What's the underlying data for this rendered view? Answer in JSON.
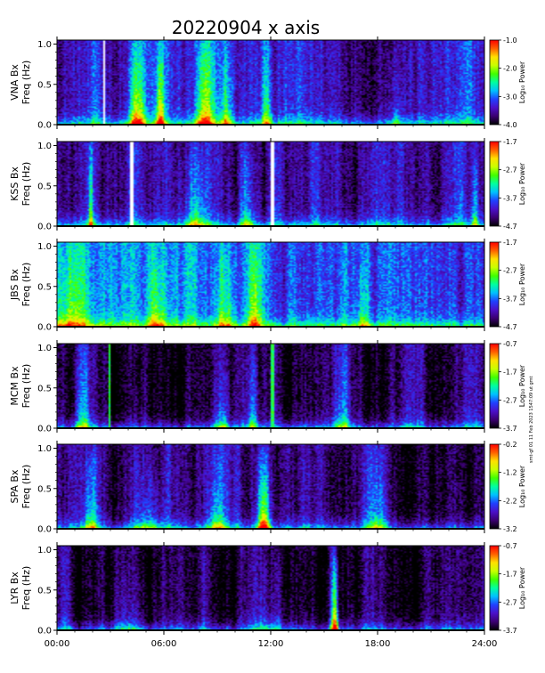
{
  "title": "20220904  x axis",
  "side_note": "smt-gf 01 11 Feb 2023 1547:09 ut gmt",
  "chart_data": {
    "type": "heatmap",
    "x": {
      "ticks": [
        "00:00",
        "06:00",
        "12:00",
        "18:00",
        "24:00"
      ],
      "range_hours": [
        0,
        24
      ]
    },
    "y": {
      "ticks": [
        "0.0",
        "0.5",
        "1.0"
      ],
      "range": [
        0,
        1.05
      ]
    },
    "colorbar_label": "Log₁₀ Power",
    "colormap": [
      "#000000",
      "#3a0070",
      "#4b10c8",
      "#2040ff",
      "#00c0ff",
      "#00ffa0",
      "#40ff00",
      "#c8ff00",
      "#ffe000",
      "#ff6000",
      "#ff0000"
    ],
    "panels": [
      {
        "station": "VNA",
        "ylabel_1": "VNA Bx",
        "ylabel_2": "Freq (Hz)",
        "cbar_ticks": [
          "-1.0",
          "-2.0",
          "-3.0",
          "-4.0"
        ],
        "cbar_range": [
          -4.0,
          -1.0
        ],
        "baseline": 0.35,
        "gaps_hours": [
          0.6,
          2.6,
          10.7,
          23.8
        ],
        "events": [
          {
            "t": 4.5,
            "w": 0.45,
            "amp": 0.5
          },
          {
            "t": 5.8,
            "w": 0.25,
            "amp": 0.55
          },
          {
            "t": 8.3,
            "w": 0.5,
            "amp": 0.45
          },
          {
            "t": 9.5,
            "w": 0.3,
            "amp": 0.35
          },
          {
            "t": 11.8,
            "w": 0.3,
            "amp": 0.3
          },
          {
            "t": 19.0,
            "w": 0.4,
            "amp": 0.2
          }
        ]
      },
      {
        "station": "KSS",
        "ylabel_1": "KSS Bx",
        "ylabel_2": "Freq (Hz)",
        "cbar_ticks": [
          "-1.7",
          "-2.7",
          "-3.7",
          "-4.7"
        ],
        "cbar_range": [
          -4.7,
          -1.7
        ],
        "baseline": 0.3,
        "gaps_hours": [
          4.2,
          12.1
        ],
        "events": [
          {
            "t": 1.9,
            "w": 0.15,
            "amp": 0.45
          },
          {
            "t": 7.8,
            "w": 0.7,
            "amp": 0.3
          },
          {
            "t": 10.7,
            "w": 0.4,
            "amp": 0.25
          },
          {
            "t": 23.5,
            "w": 0.2,
            "amp": 0.3
          }
        ]
      },
      {
        "station": "JBS",
        "ylabel_1": "JBS Bx",
        "ylabel_2": "Freq (Hz)",
        "cbar_ticks": [
          "-1.7",
          "-2.7",
          "-3.7",
          "-4.7"
        ],
        "cbar_range": [
          -4.7,
          -1.7
        ],
        "baseline": 0.5,
        "gaps_hours": [],
        "events": [
          {
            "t": 0.8,
            "w": 1.0,
            "amp": 0.25
          },
          {
            "t": 5.6,
            "w": 0.5,
            "amp": 0.3
          },
          {
            "t": 9.5,
            "w": 0.5,
            "amp": 0.25
          },
          {
            "t": 11.1,
            "w": 0.3,
            "amp": 0.3
          },
          {
            "t": 17.2,
            "w": 0.4,
            "amp": 0.2
          }
        ]
      },
      {
        "station": "MCM",
        "ylabel_1": "MCM Bx",
        "ylabel_2": "Freq (Hz)",
        "cbar_ticks": [
          "-0.7",
          "-1.7",
          "-2.7",
          "-3.7"
        ],
        "cbar_range": [
          -3.7,
          -0.7
        ],
        "baseline": 0.12,
        "gaps_hours": [],
        "spikes_hours": [
          2.9,
          12.1,
          21.8
        ],
        "events": [
          {
            "t": 1.5,
            "w": 0.4,
            "amp": 0.25
          },
          {
            "t": 9.3,
            "w": 0.4,
            "amp": 0.3
          },
          {
            "t": 11.0,
            "w": 0.3,
            "amp": 0.25
          },
          {
            "t": 16.0,
            "w": 0.5,
            "amp": 0.2
          }
        ]
      },
      {
        "station": "SPA",
        "ylabel_1": "SPA Bx",
        "ylabel_2": "Freq (Hz)",
        "cbar_ticks": [
          "-0.2",
          "-1.2",
          "-2.2",
          "-3.2"
        ],
        "cbar_range": [
          -3.2,
          -0.2
        ],
        "baseline": 0.2,
        "gaps_hours": [],
        "events": [
          {
            "t": 1.9,
            "w": 0.4,
            "amp": 0.35
          },
          {
            "t": 5.2,
            "w": 0.8,
            "amp": 0.25
          },
          {
            "t": 11.6,
            "w": 0.35,
            "amp": 0.7
          },
          {
            "t": 9.0,
            "w": 0.5,
            "amp": 0.3
          },
          {
            "t": 18.0,
            "w": 0.6,
            "amp": 0.25
          }
        ]
      },
      {
        "station": "LYR",
        "ylabel_1": "LYR Bx",
        "ylabel_2": "Freq (Hz)",
        "cbar_ticks": [
          "-0.7",
          "-1.7",
          "-2.7",
          "-3.7"
        ],
        "cbar_range": [
          -3.7,
          -0.7
        ],
        "baseline": 0.12,
        "gaps_hours": [],
        "events": [
          {
            "t": 15.6,
            "w": 0.2,
            "amp": 0.8
          },
          {
            "t": 4.0,
            "w": 1.0,
            "amp": 0.15
          },
          {
            "t": 12.0,
            "w": 1.0,
            "amp": 0.15
          }
        ]
      }
    ]
  }
}
